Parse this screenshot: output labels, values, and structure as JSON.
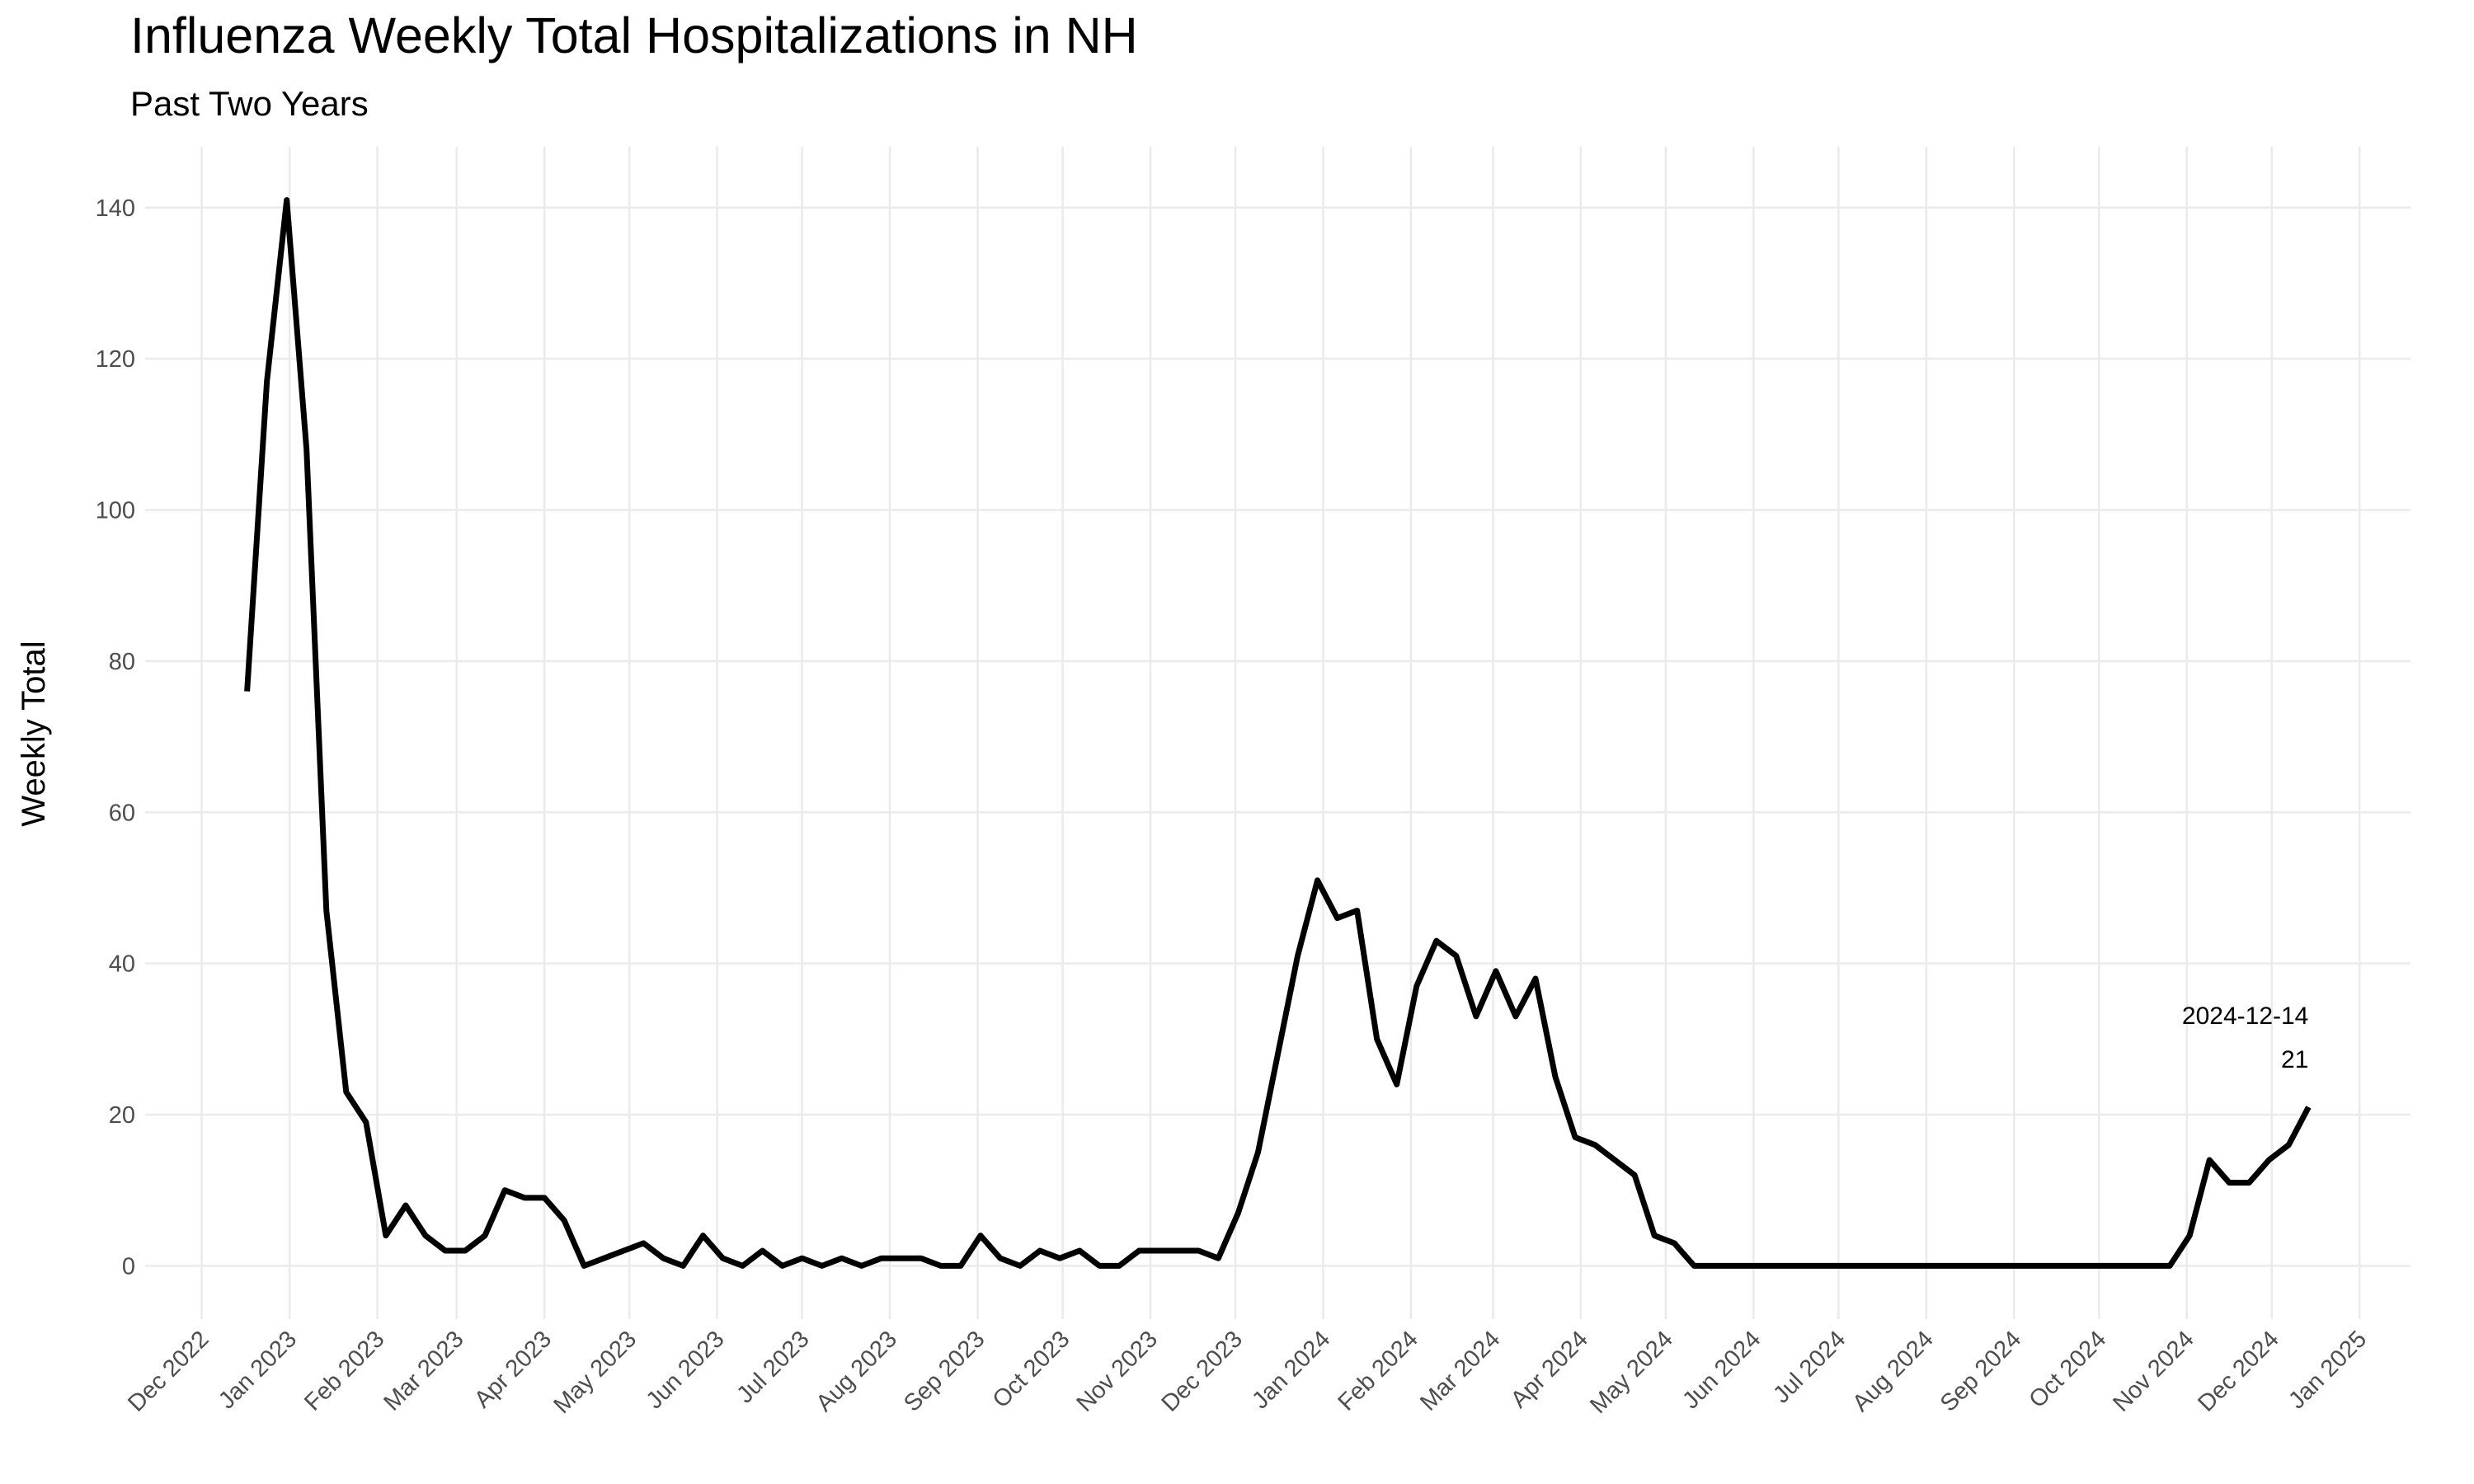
{
  "chart_data": {
    "type": "line",
    "title": "Influenza Weekly Total Hospitalizations in NH",
    "subtitle": "Past Two Years",
    "y_label": "Weekly Total",
    "x": [
      "2022-12-17",
      "2022-12-24",
      "2022-12-31",
      "2023-01-07",
      "2023-01-14",
      "2023-01-21",
      "2023-01-28",
      "2023-02-04",
      "2023-02-11",
      "2023-02-18",
      "2023-02-25",
      "2023-03-04",
      "2023-03-11",
      "2023-03-18",
      "2023-03-25",
      "2023-04-01",
      "2023-04-08",
      "2023-04-15",
      "2023-04-22",
      "2023-04-29",
      "2023-05-06",
      "2023-05-13",
      "2023-05-20",
      "2023-05-27",
      "2023-06-03",
      "2023-06-10",
      "2023-06-17",
      "2023-06-24",
      "2023-07-01",
      "2023-07-08",
      "2023-07-15",
      "2023-07-22",
      "2023-07-29",
      "2023-08-05",
      "2023-08-12",
      "2023-08-19",
      "2023-08-26",
      "2023-09-02",
      "2023-09-09",
      "2023-09-16",
      "2023-09-23",
      "2023-09-30",
      "2023-10-07",
      "2023-10-14",
      "2023-10-21",
      "2023-10-28",
      "2023-11-04",
      "2023-11-11",
      "2023-11-18",
      "2023-11-25",
      "2023-12-02",
      "2023-12-09",
      "2023-12-16",
      "2023-12-23",
      "2023-12-30",
      "2024-01-06",
      "2024-01-13",
      "2024-01-20",
      "2024-01-27",
      "2024-02-03",
      "2024-02-10",
      "2024-02-17",
      "2024-02-24",
      "2024-03-02",
      "2024-03-09",
      "2024-03-16",
      "2024-03-23",
      "2024-03-30",
      "2024-04-06",
      "2024-04-13",
      "2024-04-20",
      "2024-04-27",
      "2024-05-04",
      "2024-05-11",
      "2024-05-18",
      "2024-05-25",
      "2024-06-01",
      "2024-06-08",
      "2024-06-15",
      "2024-06-22",
      "2024-06-29",
      "2024-07-06",
      "2024-07-13",
      "2024-07-20",
      "2024-07-27",
      "2024-08-03",
      "2024-08-10",
      "2024-08-17",
      "2024-08-24",
      "2024-08-31",
      "2024-09-07",
      "2024-09-14",
      "2024-09-21",
      "2024-09-28",
      "2024-10-05",
      "2024-10-12",
      "2024-10-19",
      "2024-10-26",
      "2024-11-02",
      "2024-11-09",
      "2024-11-16",
      "2024-11-23",
      "2024-11-30",
      "2024-12-07",
      "2024-12-14"
    ],
    "series": [
      {
        "color": "#000000",
        "values": [
          76,
          117,
          141,
          108,
          47,
          23,
          19,
          4,
          8,
          4,
          2,
          2,
          4,
          10,
          9,
          9,
          6,
          0,
          1,
          2,
          3,
          1,
          0,
          4,
          1,
          0,
          2,
          0,
          1,
          0,
          1,
          0,
          1,
          1,
          1,
          0,
          0,
          4,
          1,
          0,
          2,
          1,
          2,
          0,
          0,
          2,
          2,
          2,
          2,
          1,
          7,
          15,
          28,
          41,
          51,
          46,
          47,
          30,
          24,
          37,
          43,
          41,
          33,
          39,
          33,
          38,
          25,
          17,
          16,
          14,
          12,
          4,
          3,
          0,
          0,
          0,
          0,
          0,
          0,
          0,
          0,
          0,
          0,
          0,
          0,
          0,
          0,
          0,
          0,
          0,
          0,
          0,
          0,
          0,
          0,
          0,
          0,
          0,
          4,
          14,
          11,
          11,
          14,
          16,
          21
        ]
      }
    ],
    "xlim": [
      "2022-11-11",
      "2025-01-19"
    ],
    "xticks": [
      {
        "value": "2022-12-01",
        "label": "Dec 2022"
      },
      {
        "value": "2023-01-01",
        "label": "Jan 2023"
      },
      {
        "value": "2023-02-01",
        "label": "Feb 2023"
      },
      {
        "value": "2023-03-01",
        "label": "Mar 2023"
      },
      {
        "value": "2023-04-01",
        "label": "Apr 2023"
      },
      {
        "value": "2023-05-01",
        "label": "May 2023"
      },
      {
        "value": "2023-06-01",
        "label": "Jun 2023"
      },
      {
        "value": "2023-07-01",
        "label": "Jul 2023"
      },
      {
        "value": "2023-08-01",
        "label": "Aug 2023"
      },
      {
        "value": "2023-09-01",
        "label": "Sep 2023"
      },
      {
        "value": "2023-10-01",
        "label": "Oct 2023"
      },
      {
        "value": "2023-11-01",
        "label": "Nov 2023"
      },
      {
        "value": "2023-12-01",
        "label": "Dec 2023"
      },
      {
        "value": "2024-01-01",
        "label": "Jan 2024"
      },
      {
        "value": "2024-02-01",
        "label": "Feb 2024"
      },
      {
        "value": "2024-03-01",
        "label": "Mar 2024"
      },
      {
        "value": "2024-04-01",
        "label": "Apr 2024"
      },
      {
        "value": "2024-05-01",
        "label": "May 2024"
      },
      {
        "value": "2024-06-01",
        "label": "Jun 2024"
      },
      {
        "value": "2024-07-01",
        "label": "Jul 2024"
      },
      {
        "value": "2024-08-01",
        "label": "Aug 2024"
      },
      {
        "value": "2024-09-01",
        "label": "Sep 2024"
      },
      {
        "value": "2024-10-01",
        "label": "Oct 2024"
      },
      {
        "value": "2024-11-01",
        "label": "Nov 2024"
      },
      {
        "value": "2024-12-01",
        "label": "Dec 2024"
      },
      {
        "value": "2025-01-01",
        "label": "Jan 2025"
      }
    ],
    "ylim": [
      -7.05,
      148.05
    ],
    "yticks": [
      0,
      20,
      40,
      60,
      80,
      100,
      120,
      140
    ],
    "grid": true
  }
}
